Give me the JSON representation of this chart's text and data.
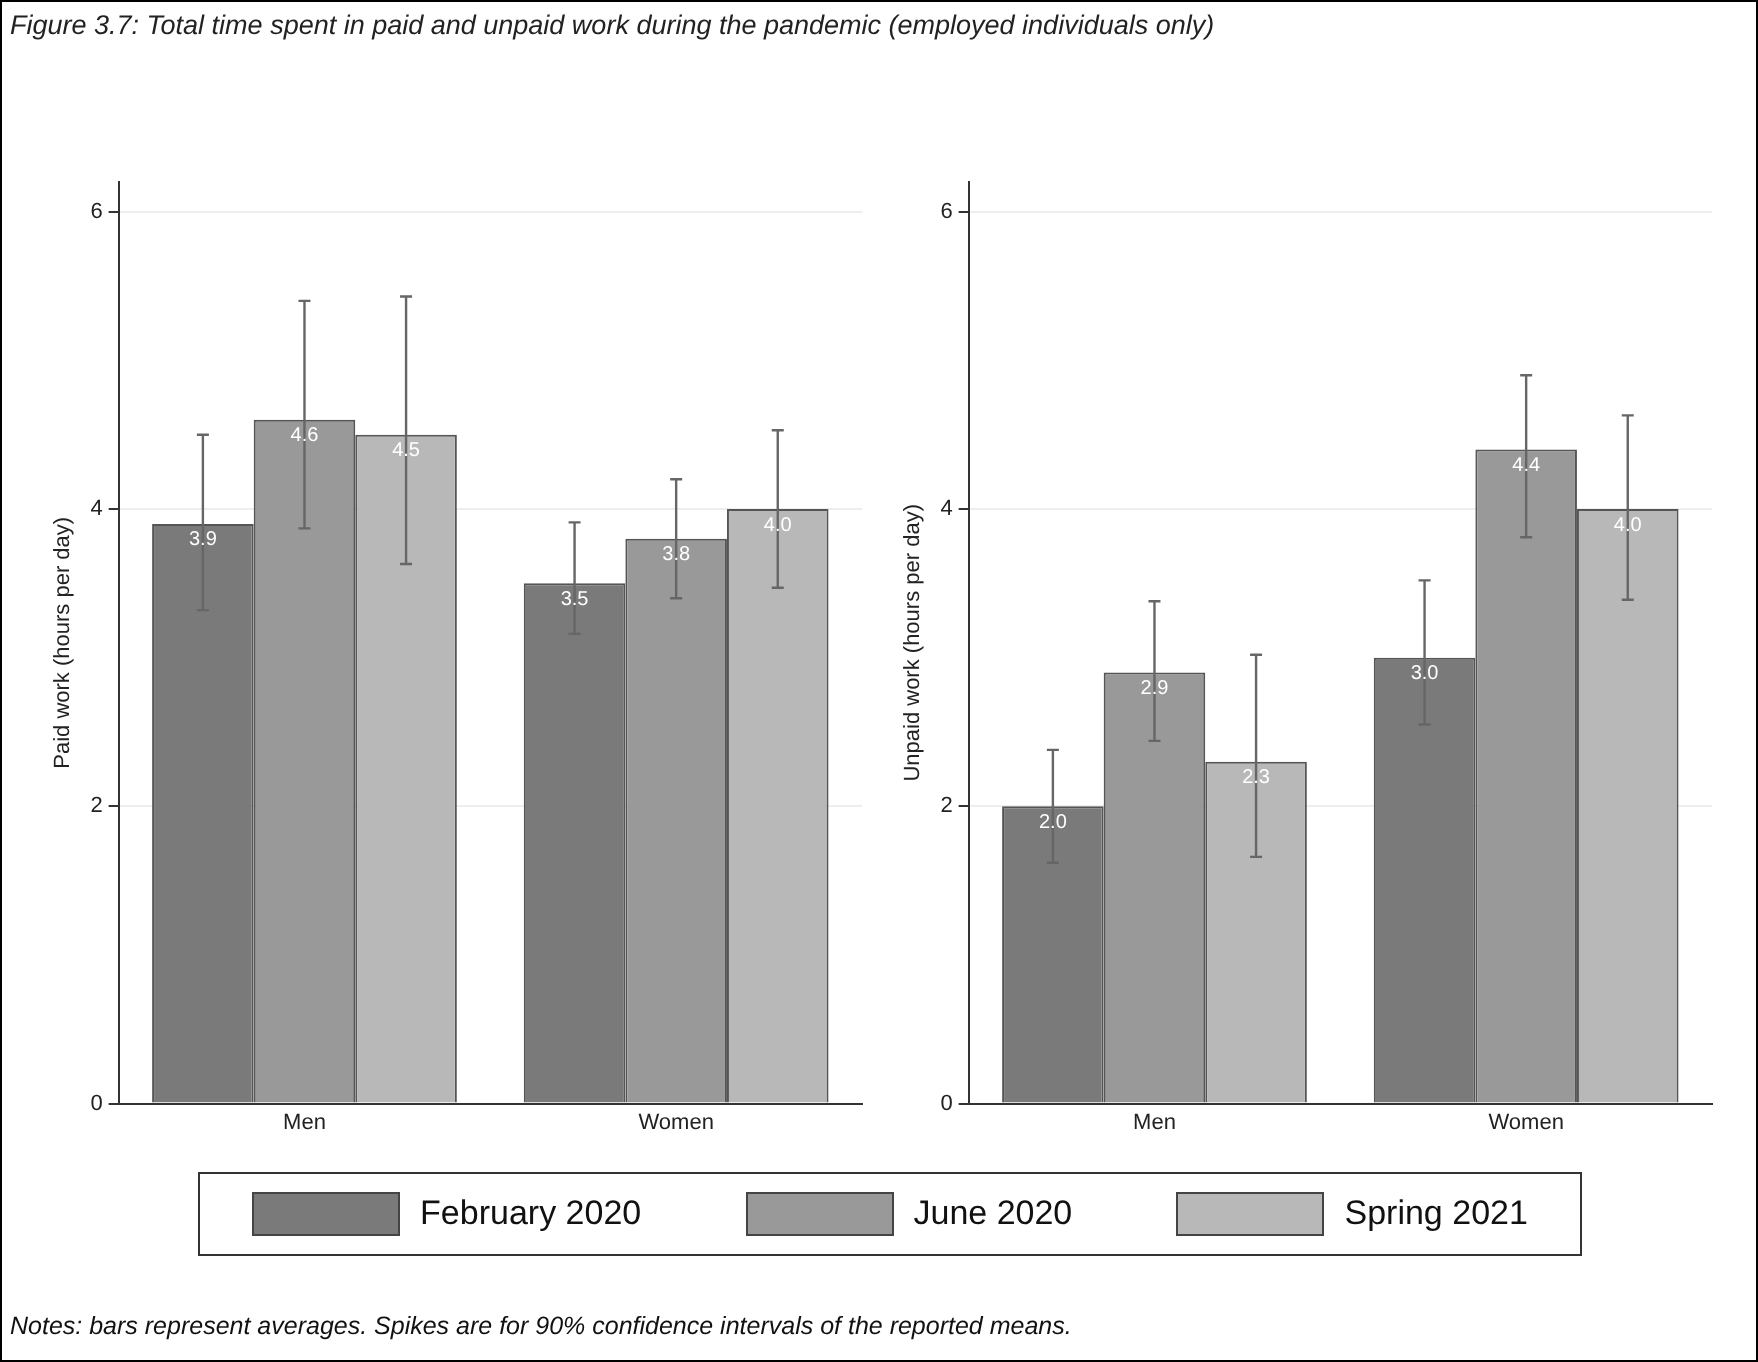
{
  "chart_data": [
    {
      "type": "bar",
      "title": "Figure 3.7: Total time spent in paid and unpaid work during the pandemic (employed individuals only)",
      "ylabel": "Paid work (hours per day)",
      "categories": [
        "Men",
        "Women"
      ],
      "ylim": [
        0,
        6.2
      ],
      "yticks": [
        0,
        2,
        4,
        6
      ],
      "grid": "y",
      "legend": "bottom",
      "series": [
        {
          "name": "February 2020",
          "color": "#7a7a7a",
          "values": [
            3.9,
            3.5
          ],
          "value_labels": [
            "3.9",
            "3.5"
          ],
          "errors": [
            [
              3.32,
              4.5
            ],
            [
              3.16,
              3.91
            ]
          ]
        },
        {
          "name": "June 2020",
          "color": "#999999",
          "values": [
            4.6,
            3.8
          ],
          "value_labels": [
            "4.6",
            "3.8"
          ],
          "errors": [
            [
              3.87,
              5.4
            ],
            [
              3.4,
              4.2
            ]
          ]
        },
        {
          "name": "Spring 2021",
          "color": "#b8b8b8",
          "values": [
            4.5,
            4.0
          ],
          "value_labels": [
            "4.5",
            "4.0"
          ],
          "errors": [
            [
              3.63,
              5.43
            ],
            [
              3.47,
              4.53
            ]
          ]
        }
      ],
      "annotations": [
        "Notes: bars represent averages. Spikes are for 90% confidence intervals of the reported means."
      ]
    },
    {
      "type": "bar",
      "ylabel": "Unpaid work (hours per day)",
      "categories": [
        "Men",
        "Women"
      ],
      "ylim": [
        0,
        6.2
      ],
      "yticks": [
        0,
        2,
        4,
        6
      ],
      "grid": "y",
      "series": [
        {
          "color": "#7a7a7a",
          "values": [
            2.0,
            3.0
          ],
          "value_labels": [
            "2.0",
            "3.0"
          ],
          "errors": [
            [
              1.62,
              2.38
            ],
            [
              2.55,
              3.52
            ]
          ]
        },
        {
          "color": "#999999",
          "values": [
            2.9,
            4.4
          ],
          "value_labels": [
            "2.9",
            "4.4"
          ],
          "errors": [
            [
              2.44,
              3.38
            ],
            [
              3.81,
              4.9
            ]
          ]
        },
        {
          "color": "#b8b8b8",
          "values": [
            2.3,
            4.0
          ],
          "value_labels": [
            "2.3",
            "4.0"
          ],
          "errors": [
            [
              1.66,
              3.02
            ],
            [
              3.39,
              4.63
            ]
          ]
        }
      ]
    }
  ]
}
